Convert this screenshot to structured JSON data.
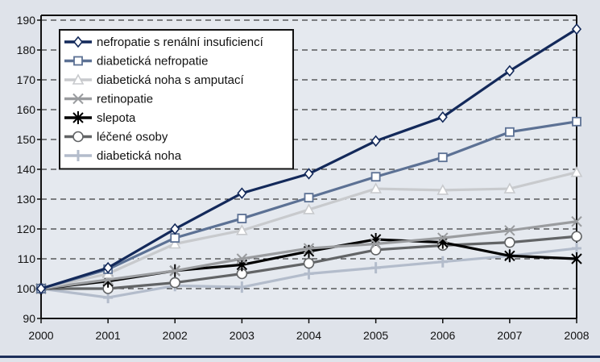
{
  "chart_data": {
    "type": "line",
    "title": "",
    "xlabel": "",
    "ylabel": "",
    "x": [
      2000,
      2001,
      2002,
      2003,
      2004,
      2005,
      2006,
      2007,
      2008
    ],
    "ylim": [
      90,
      190
    ],
    "yticks": [
      90,
      100,
      110,
      120,
      130,
      140,
      150,
      160,
      170,
      180,
      190
    ],
    "grid": "horizontal dashed",
    "legend_position": "top-left",
    "series": [
      {
        "name": "nefropatie s renální insuficiencí",
        "color": "#13295a",
        "marker": "diamond",
        "values": [
          100,
          107,
          120,
          132,
          138.5,
          149.5,
          157.5,
          173,
          187
        ]
      },
      {
        "name": "diabetická nefropatie",
        "color": "#5c7194",
        "marker": "square",
        "values": [
          100,
          106.5,
          117,
          123.5,
          130.5,
          137.5,
          144,
          152.5,
          156
        ]
      },
      {
        "name": "diabetická noha s amputací",
        "color": "#c8cacd",
        "marker": "triangle",
        "values": [
          100,
          105,
          115,
          119.5,
          126.5,
          133.5,
          133,
          133.5,
          139
        ]
      },
      {
        "name": "retinopatie",
        "color": "#9a9c9f",
        "marker": "x",
        "values": [
          100,
          103,
          106,
          110,
          113.5,
          115,
          117,
          119.5,
          122.5
        ]
      },
      {
        "name": "slepota",
        "color": "#000000",
        "marker": "asterisk",
        "values": [
          100,
          102.5,
          106,
          108,
          112.5,
          116.5,
          115.5,
          111,
          110
        ]
      },
      {
        "name": "léčené osoby",
        "color": "#626466",
        "marker": "circle",
        "values": [
          100,
          100,
          102,
          105,
          108.5,
          113,
          114.5,
          115.5,
          117.5
        ]
      },
      {
        "name": "diabetická noha",
        "color": "#b3bccb",
        "marker": "plus",
        "values": [
          100,
          97,
          101,
          100.5,
          105,
          107,
          109,
          111,
          113.5
        ]
      }
    ]
  }
}
